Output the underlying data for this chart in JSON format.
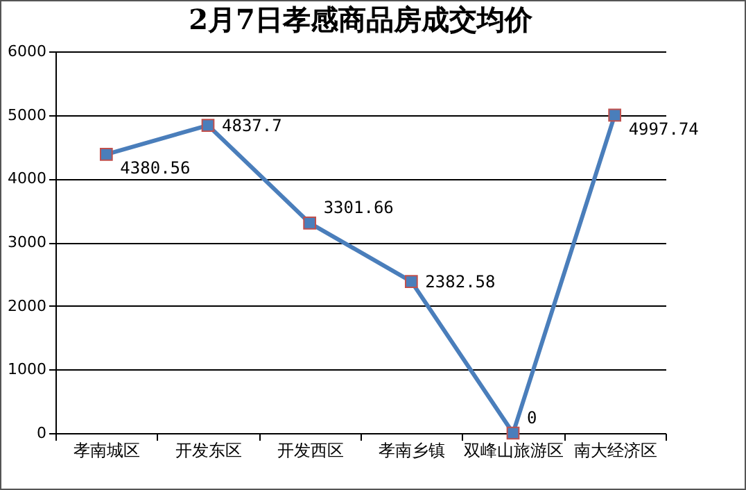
{
  "chart_data": {
    "type": "line",
    "title": "2月7日孝感商品房成交均价",
    "categories": [
      "孝南城区",
      "开发东区",
      "开发西区",
      "孝南乡镇",
      "双峰山旅游区",
      "南大经济区"
    ],
    "series": [
      {
        "color": "#4a7ebb",
        "values": [
          4380.56,
          4837.7,
          3301.66,
          2382.58,
          0,
          4997.74
        ]
      }
    ],
    "ylim": [
      0,
      6000
    ],
    "yticks": [
      0,
      1000,
      2000,
      3000,
      4000,
      5000,
      6000
    ],
    "grid": "y",
    "marker": "square",
    "data_labels": true
  }
}
